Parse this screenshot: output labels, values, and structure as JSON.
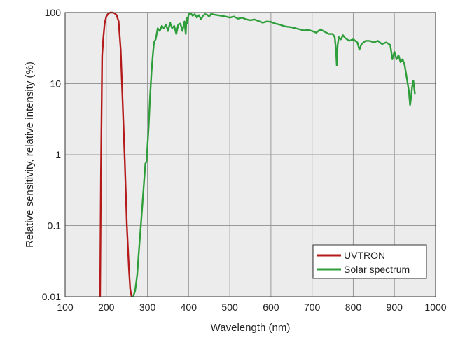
{
  "chart_data": {
    "type": "line",
    "xlabel": "Wavelength (nm)",
    "ylabel": "Relative sensitivity, relative intensity (%)",
    "xlim": [
      100,
      1000
    ],
    "ylim": [
      0.01,
      100
    ],
    "yscale": "log",
    "grid": true,
    "plot_background": "#ececec",
    "grid_color": "#999999",
    "legend_position": "bottom-right",
    "x_ticks": [
      100,
      200,
      300,
      400,
      500,
      600,
      700,
      800,
      900,
      1000
    ],
    "x_tick_labels": [
      "100",
      "200",
      "300",
      "400",
      "500",
      "600",
      "700",
      "800",
      "900",
      "1000"
    ],
    "y_ticks": [
      0.01,
      0.1,
      1,
      10,
      100
    ],
    "y_tick_labels": [
      "0.01",
      "0.1",
      "1",
      "10",
      "100"
    ],
    "series": [
      {
        "name": "UVTRON",
        "color": "#b51a1a",
        "x": [
          185,
          187,
          190,
          193,
          196,
          200,
          205,
          210,
          215,
          220,
          225,
          230,
          235,
          240,
          245,
          250,
          255,
          258,
          260,
          262
        ],
        "y": [
          0.01,
          0.5,
          25,
          45,
          70,
          88,
          97,
          100,
          100,
          98,
          92,
          75,
          30,
          5,
          0.8,
          0.1,
          0.025,
          0.013,
          0.011,
          0.01
        ]
      },
      {
        "name": "Solar spectrum",
        "color": "#2e9e3a",
        "x": [
          265,
          270,
          275,
          280,
          285,
          290,
          295,
          298,
          300,
          303,
          306,
          310,
          313,
          316,
          320,
          325,
          330,
          335,
          340,
          345,
          350,
          355,
          360,
          365,
          370,
          375,
          380,
          385,
          390,
          393,
          395,
          397,
          400,
          405,
          410,
          415,
          420,
          425,
          430,
          435,
          440,
          445,
          450,
          455,
          460,
          470,
          480,
          490,
          500,
          510,
          520,
          530,
          540,
          550,
          560,
          570,
          580,
          590,
          600,
          610,
          620,
          630,
          640,
          650,
          660,
          670,
          680,
          690,
          700,
          710,
          720,
          730,
          740,
          750,
          755,
          758,
          760,
          762,
          765,
          770,
          775,
          780,
          790,
          800,
          810,
          815,
          820,
          825,
          830,
          840,
          850,
          860,
          870,
          880,
          890,
          895,
          900,
          905,
          910,
          915,
          920,
          925,
          930,
          935,
          938,
          940,
          943,
          946,
          950
        ],
        "y": [
          0.01,
          0.012,
          0.02,
          0.05,
          0.12,
          0.3,
          0.75,
          0.8,
          1.3,
          2.5,
          6,
          15,
          25,
          38,
          42,
          60,
          55,
          65,
          60,
          68,
          55,
          72,
          60,
          65,
          50,
          68,
          70,
          55,
          75,
          50,
          85,
          70,
          95,
          98,
          90,
          95,
          85,
          92,
          80,
          90,
          95,
          93,
          88,
          96,
          94,
          92,
          90,
          88,
          85,
          88,
          82,
          85,
          80,
          78,
          80,
          76,
          72,
          75,
          74,
          70,
          68,
          65,
          63,
          62,
          60,
          58,
          56,
          57,
          55,
          52,
          58,
          54,
          50,
          50,
          45,
          30,
          18,
          35,
          45,
          42,
          48,
          44,
          40,
          42,
          38,
          30,
          36,
          38,
          40,
          40,
          38,
          40,
          36,
          38,
          35,
          22,
          28,
          22,
          25,
          20,
          22,
          18,
          12,
          8,
          5,
          6,
          9,
          11,
          7
        ]
      }
    ]
  }
}
